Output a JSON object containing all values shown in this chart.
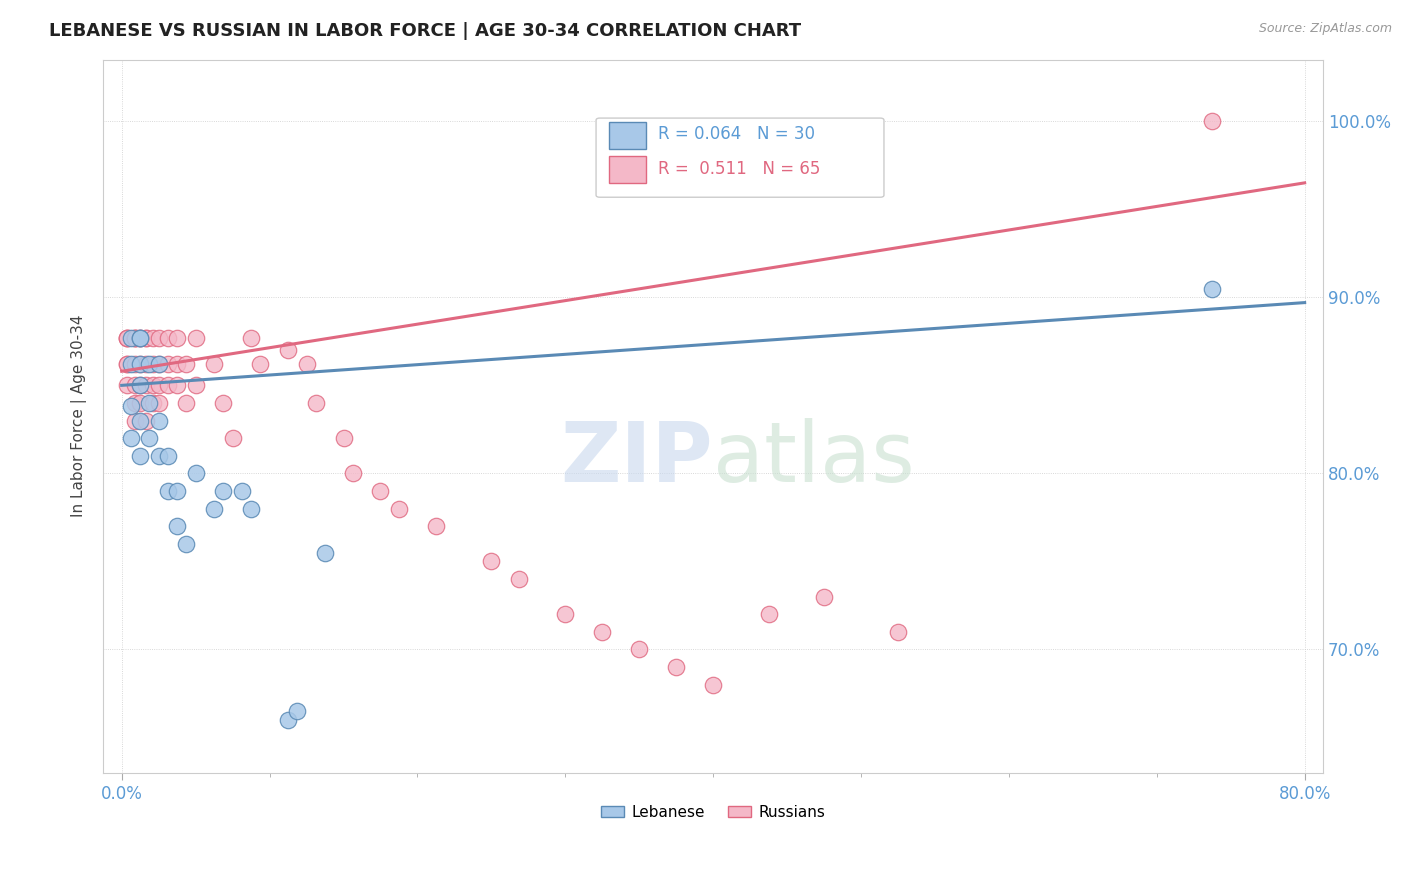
{
  "title": "LEBANESE VS RUSSIAN IN LABOR FORCE | AGE 30-34 CORRELATION CHART",
  "source": "Source: ZipAtlas.com",
  "ylabel": "In Labor Force | Age 30-34",
  "legend_leb": {
    "R": "0.064",
    "N": "30"
  },
  "legend_rus": {
    "R": "0.511",
    "N": "65"
  },
  "background_color": "#ffffff",
  "leb_color": "#a8c8e8",
  "leb_edge_color": "#5a8ab5",
  "rus_color": "#f4b8c8",
  "rus_edge_color": "#e06880",
  "leb_scatter_x": [
    0.005,
    0.005,
    0.005,
    0.005,
    0.01,
    0.01,
    0.01,
    0.01,
    0.01,
    0.01,
    0.015,
    0.015,
    0.015,
    0.02,
    0.02,
    0.02,
    0.025,
    0.025,
    0.03,
    0.03,
    0.035,
    0.04,
    0.05,
    0.055,
    0.065,
    0.07,
    0.09,
    0.095,
    0.11,
    0.59
  ],
  "leb_scatter_y": [
    0.877,
    0.862,
    0.838,
    0.82,
    0.877,
    0.877,
    0.862,
    0.85,
    0.83,
    0.81,
    0.862,
    0.84,
    0.82,
    0.862,
    0.83,
    0.81,
    0.81,
    0.79,
    0.79,
    0.77,
    0.76,
    0.8,
    0.78,
    0.79,
    0.79,
    0.78,
    0.66,
    0.665,
    0.755,
    0.905
  ],
  "rus_scatter_x": [
    0.003,
    0.003,
    0.003,
    0.003,
    0.003,
    0.003,
    0.007,
    0.007,
    0.007,
    0.007,
    0.007,
    0.007,
    0.007,
    0.01,
    0.01,
    0.01,
    0.01,
    0.01,
    0.013,
    0.013,
    0.013,
    0.013,
    0.013,
    0.017,
    0.017,
    0.017,
    0.017,
    0.02,
    0.02,
    0.02,
    0.02,
    0.025,
    0.025,
    0.025,
    0.03,
    0.03,
    0.03,
    0.035,
    0.035,
    0.04,
    0.04,
    0.05,
    0.055,
    0.06,
    0.07,
    0.075,
    0.09,
    0.1,
    0.105,
    0.12,
    0.125,
    0.14,
    0.15,
    0.17,
    0.2,
    0.215,
    0.24,
    0.26,
    0.28,
    0.3,
    0.32,
    0.35,
    0.38,
    0.42,
    0.59
  ],
  "rus_scatter_y": [
    0.877,
    0.877,
    0.877,
    0.862,
    0.862,
    0.85,
    0.877,
    0.877,
    0.877,
    0.862,
    0.85,
    0.84,
    0.83,
    0.877,
    0.877,
    0.862,
    0.85,
    0.84,
    0.877,
    0.877,
    0.862,
    0.85,
    0.83,
    0.877,
    0.862,
    0.85,
    0.84,
    0.877,
    0.862,
    0.85,
    0.84,
    0.877,
    0.862,
    0.85,
    0.877,
    0.862,
    0.85,
    0.862,
    0.84,
    0.877,
    0.85,
    0.862,
    0.84,
    0.82,
    0.877,
    0.862,
    0.87,
    0.862,
    0.84,
    0.82,
    0.8,
    0.79,
    0.78,
    0.77,
    0.75,
    0.74,
    0.72,
    0.71,
    0.7,
    0.69,
    0.68,
    0.72,
    0.73,
    0.71,
    1.0
  ],
  "xlim": [
    -0.01,
    0.65
  ],
  "ylim": [
    0.63,
    1.035
  ],
  "ytick_vals": [
    0.7,
    0.8,
    0.9,
    1.0
  ],
  "ytick_labels": [
    "70.0%",
    "80.0%",
    "90.0%",
    "100.0%"
  ],
  "xtick_vals": [
    0.0,
    0.08,
    0.16,
    0.24,
    0.32,
    0.4,
    0.48,
    0.56,
    0.64
  ],
  "leb_line": {
    "x0": 0.0,
    "x1": 0.64,
    "y0": 0.85,
    "y1": 0.897
  },
  "rus_line": {
    "x0": 0.0,
    "x1": 0.64,
    "y0": 0.858,
    "y1": 0.965
  }
}
